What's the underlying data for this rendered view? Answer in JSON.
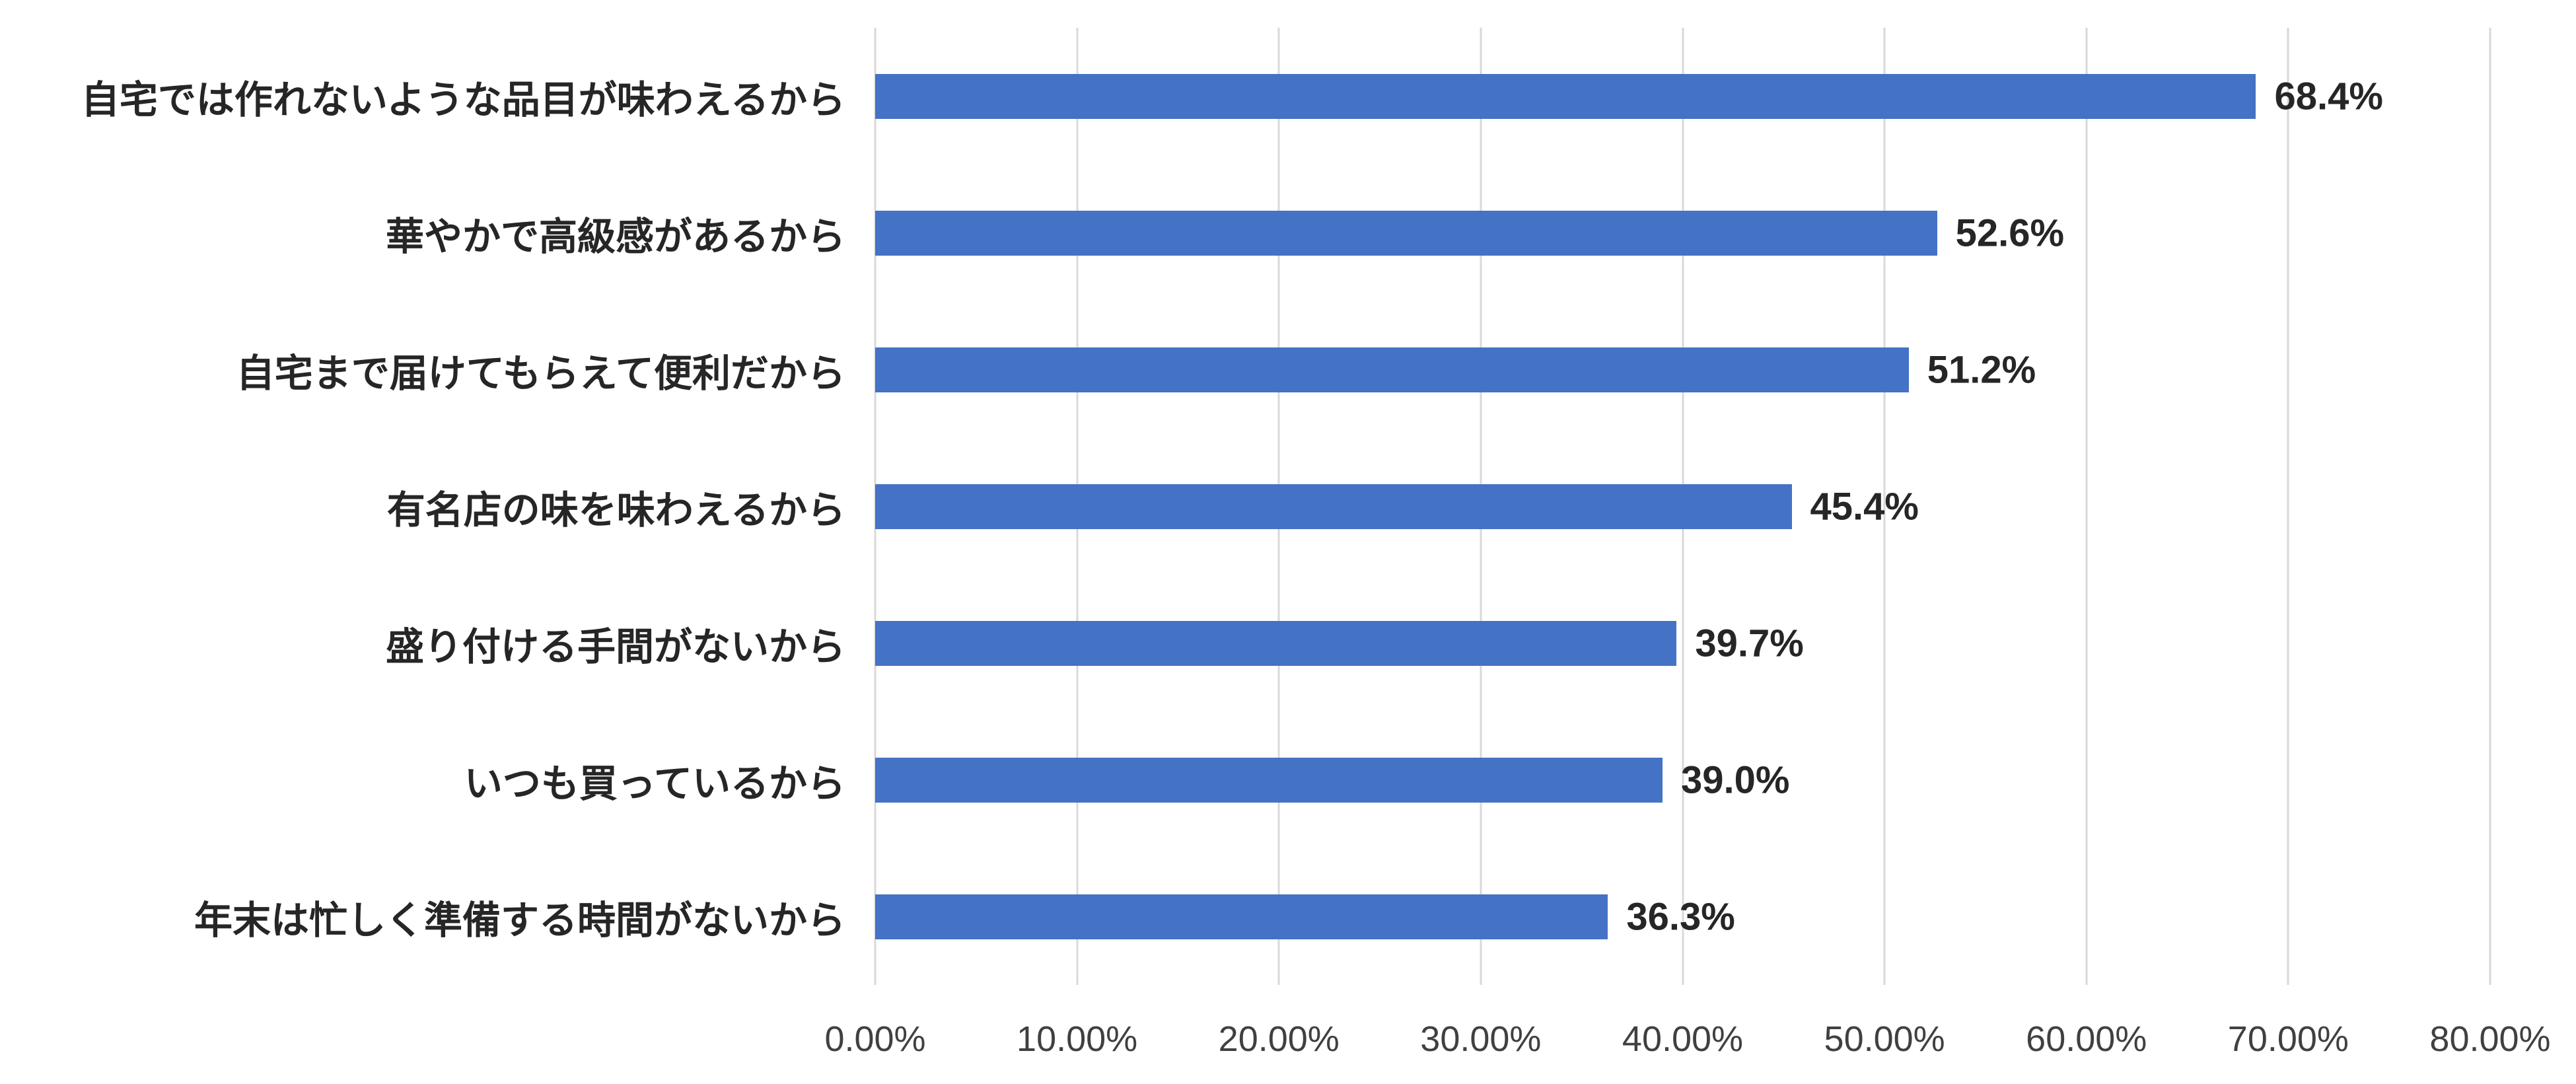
{
  "chart_data": {
    "type": "bar",
    "orientation": "horizontal",
    "title": "",
    "xlabel": "",
    "ylabel": "",
    "xlim": [
      0,
      80
    ],
    "grid": true,
    "legend": false,
    "bar_color": "#4472c4",
    "gridline_color": "#d9d9d9",
    "categories": [
      "自宅では作れないような品目が味わえるから",
      "華やかで高級感があるから",
      "自宅まで届けてもらえて便利だから",
      "有名店の味を味わえるから",
      "盛り付ける手間がないから",
      "いつも買っているから",
      "年末は忙しく準備する時間がないから"
    ],
    "values": [
      68.4,
      52.6,
      51.2,
      45.4,
      39.7,
      39.0,
      36.3
    ],
    "value_labels": [
      "68.4%",
      "52.6%",
      "51.2%",
      "45.4%",
      "39.7%",
      "39.0%",
      "36.3%"
    ],
    "x_tick_values": [
      0,
      10,
      20,
      30,
      40,
      50,
      60,
      70,
      80
    ],
    "x_tick_labels": [
      "0.00%",
      "10.00%",
      "20.00%",
      "30.00%",
      "40.00%",
      "50.00%",
      "60.00%",
      "70.00%",
      "80.00%"
    ]
  }
}
